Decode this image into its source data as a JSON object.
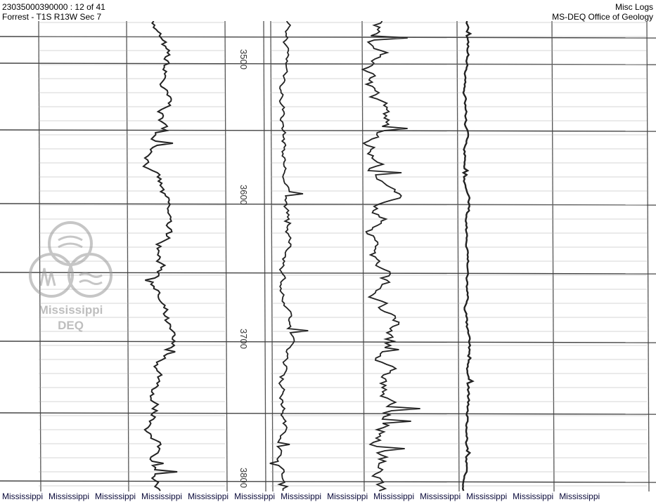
{
  "header": {
    "document_id": "23035000390000 : 12 of 41",
    "location": "Forrest - T1S R13W Sec 7",
    "category": "Misc Logs",
    "agency": "MS-DEQ Office of Geology"
  },
  "log": {
    "depth_labels": [
      "3500",
      "3600",
      "3700",
      "3800"
    ]
  },
  "watermark": {
    "line1": "Mississippi",
    "line2": "DEQ"
  },
  "footer": {
    "items": [
      "Mississippi",
      "Mississippi",
      "Mississippi",
      "Mississippi",
      "Mississippi",
      "Mississippi",
      "Mississippi",
      "Mississippi",
      "Mississippi",
      "Mississippi",
      "Mississippi",
      "Mississippi",
      "Mississippi"
    ]
  }
}
